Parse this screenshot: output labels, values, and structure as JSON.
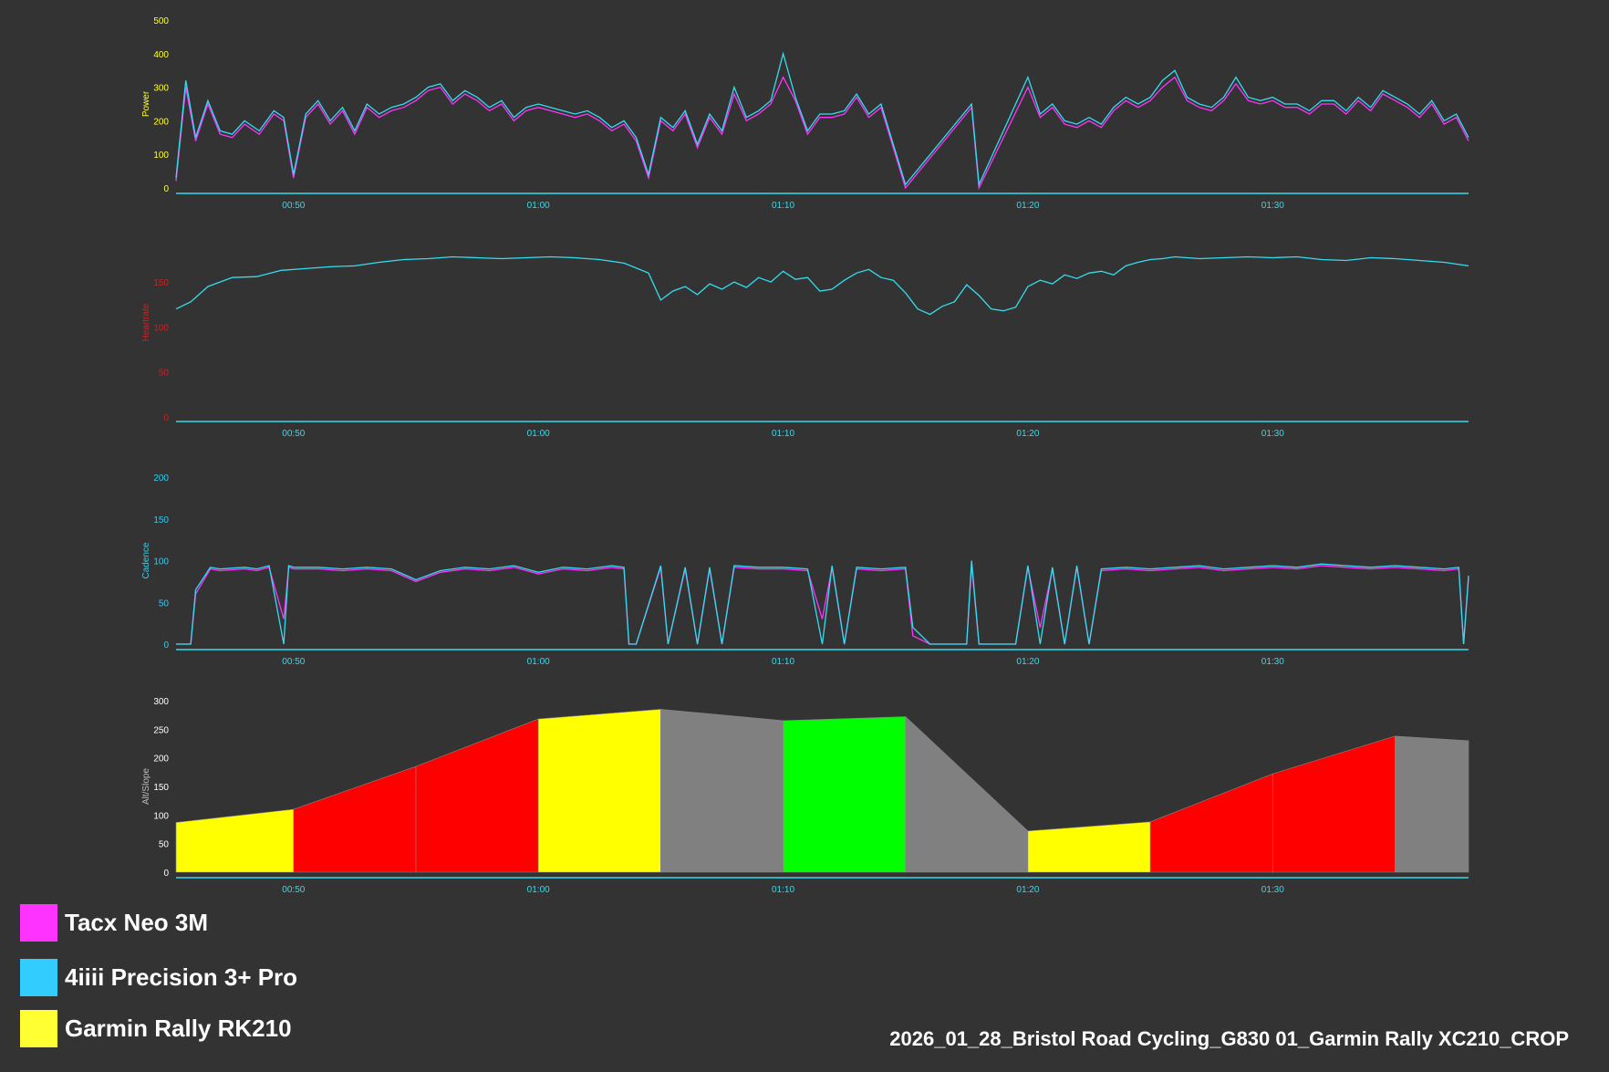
{
  "file_title": "2026_01_28_Bristol Road Cycling_G830 01_Garmin Rally XC210_CROP",
  "legend": [
    {
      "label": "Tacx Neo 3M",
      "color": "#ff33ff"
    },
    {
      "label": "4iiii Precision 3+ Pro",
      "color": "#33ccff"
    },
    {
      "label": "Garmin Rally RK210",
      "color": "#ffff33"
    }
  ],
  "colors": {
    "background": "#333333",
    "trace": "#33ddee",
    "trace_alt": "#ff33ff",
    "power_label": "#ffff33",
    "hr_label": "#cc2222",
    "cad_label": "#33ccee",
    "alt_label": "#bbbbbb",
    "axis": "#33ddee"
  },
  "chart_data": [
    {
      "type": "line",
      "ylabel": "Power",
      "yticks": [
        0,
        100,
        200,
        300,
        400,
        500
      ],
      "ylim": [
        0,
        500
      ],
      "x_ticks": [
        "00:50",
        "01:00",
        "01:10",
        "01:20",
        "01:30"
      ],
      "x_tick_minutes": [
        50,
        60,
        70,
        80,
        90
      ],
      "xlim_minutes": [
        45.2,
        98.0
      ],
      "series": [
        {
          "color": "#ff33ff",
          "x": [
            45.2,
            45.6,
            46.0,
            46.5,
            47.0,
            47.5,
            48.0,
            48.6,
            49.2,
            49.6,
            50.0,
            50.5,
            51.0,
            51.5,
            52.0,
            52.5,
            53.0,
            53.5,
            54.0,
            54.5,
            55.0,
            55.5,
            56.0,
            56.5,
            57.0,
            57.5,
            58.0,
            58.5,
            59.0,
            59.5,
            60.0,
            60.5,
            61.0,
            61.5,
            62.0,
            62.5,
            63.0,
            63.5,
            64.0,
            64.5,
            65.0,
            65.5,
            66.0,
            66.5,
            67.0,
            67.5,
            68.0,
            68.5,
            69.0,
            69.5,
            70.0,
            70.5,
            71.0,
            71.5,
            72.0,
            72.5,
            73.0,
            73.5,
            74.0,
            74.5,
            75.0,
            77.7,
            78.0,
            80.0,
            80.5,
            81.0,
            81.5,
            82.0,
            82.5,
            83.0,
            83.5,
            84.0,
            84.5,
            85.0,
            85.5,
            86.0,
            86.5,
            87.0,
            87.5,
            88.0,
            88.5,
            89.0,
            89.5,
            90.0,
            90.5,
            91.0,
            91.5,
            92.0,
            92.5,
            93.0,
            93.5,
            94.0,
            94.5,
            95.0,
            95.5,
            96.0,
            96.5,
            97.0,
            97.5,
            98.0
          ],
          "y": [
            20,
            300,
            140,
            250,
            160,
            150,
            190,
            160,
            220,
            200,
            30,
            210,
            250,
            190,
            230,
            160,
            240,
            210,
            230,
            240,
            260,
            290,
            300,
            250,
            280,
            260,
            230,
            250,
            200,
            230,
            240,
            230,
            220,
            210,
            220,
            200,
            170,
            190,
            140,
            30,
            200,
            170,
            220,
            120,
            210,
            160,
            280,
            200,
            220,
            250,
            330,
            260,
            160,
            210,
            210,
            220,
            270,
            210,
            240,
            120,
            0,
            240,
            0,
            300,
            210,
            240,
            190,
            180,
            200,
            180,
            230,
            260,
            240,
            260,
            300,
            330,
            260,
            240,
            230,
            260,
            310,
            260,
            250,
            260,
            240,
            240,
            220,
            250,
            250,
            220,
            260,
            230,
            280,
            260,
            240,
            210,
            250,
            190,
            210,
            140
          ]
        },
        {
          "color": "#33ddee",
          "x": [
            45.2,
            45.6,
            46.0,
            46.5,
            47.0,
            47.5,
            48.0,
            48.6,
            49.2,
            49.6,
            50.0,
            50.5,
            51.0,
            51.5,
            52.0,
            52.5,
            53.0,
            53.5,
            54.0,
            54.5,
            55.0,
            55.5,
            56.0,
            56.5,
            57.0,
            57.5,
            58.0,
            58.5,
            59.0,
            59.5,
            60.0,
            60.5,
            61.0,
            61.5,
            62.0,
            62.5,
            63.0,
            63.5,
            64.0,
            64.5,
            65.0,
            65.5,
            66.0,
            66.5,
            67.0,
            67.5,
            68.0,
            68.5,
            69.0,
            69.5,
            70.0,
            70.5,
            71.0,
            71.5,
            72.0,
            72.5,
            73.0,
            73.5,
            74.0,
            74.5,
            75.0,
            77.7,
            78.0,
            80.0,
            80.5,
            81.0,
            81.5,
            82.0,
            82.5,
            83.0,
            83.5,
            84.0,
            84.5,
            85.0,
            85.5,
            86.0,
            86.5,
            87.0,
            87.5,
            88.0,
            88.5,
            89.0,
            89.5,
            90.0,
            90.5,
            91.0,
            91.5,
            92.0,
            92.5,
            93.0,
            93.5,
            94.0,
            94.5,
            95.0,
            95.5,
            96.0,
            96.5,
            97.0,
            97.5,
            98.0
          ],
          "y": [
            30,
            320,
            150,
            260,
            170,
            160,
            200,
            170,
            230,
            210,
            40,
            220,
            260,
            200,
            240,
            170,
            250,
            220,
            240,
            250,
            270,
            300,
            310,
            260,
            290,
            270,
            240,
            260,
            210,
            240,
            250,
            240,
            230,
            220,
            230,
            210,
            180,
            200,
            150,
            40,
            210,
            180,
            230,
            130,
            220,
            170,
            300,
            210,
            230,
            260,
            400,
            270,
            170,
            220,
            220,
            230,
            280,
            220,
            250,
            130,
            10,
            250,
            10,
            330,
            220,
            250,
            200,
            190,
            210,
            190,
            240,
            270,
            250,
            270,
            320,
            350,
            270,
            250,
            240,
            270,
            330,
            270,
            260,
            270,
            250,
            250,
            230,
            260,
            260,
            230,
            270,
            240,
            290,
            270,
            250,
            220,
            260,
            200,
            220,
            150
          ]
        }
      ]
    },
    {
      "type": "line",
      "ylabel": "Heartrate",
      "yticks": [
        0,
        50,
        100,
        150
      ],
      "ylim": [
        0,
        210
      ],
      "x_ticks": [
        "00:50",
        "01:00",
        "01:10",
        "01:20",
        "01:30"
      ],
      "x_tick_minutes": [
        50,
        60,
        70,
        80,
        90
      ],
      "xlim_minutes": [
        45.2,
        98.0
      ],
      "series": [
        {
          "color": "#33ddee",
          "x": [
            45.2,
            45.8,
            46.5,
            47.5,
            48.5,
            49.5,
            50.5,
            51.5,
            52.5,
            53.5,
            54.5,
            55.5,
            56.5,
            57.5,
            58.5,
            59.5,
            60.5,
            61.5,
            62.5,
            63.5,
            64.5,
            65.0,
            65.5,
            66.0,
            66.5,
            67.0,
            67.5,
            68.0,
            68.5,
            69.0,
            69.5,
            70.0,
            70.5,
            71.0,
            71.5,
            72.0,
            72.5,
            73.0,
            73.5,
            74.0,
            74.5,
            75.0,
            75.5,
            76.0,
            76.5,
            77.0,
            77.5,
            78.0,
            78.5,
            79.0,
            79.5,
            80.0,
            80.5,
            81.0,
            81.5,
            82.0,
            82.5,
            83.0,
            83.5,
            84.0,
            84.5,
            85.0,
            85.5,
            86.0,
            87.0,
            88.0,
            89.0,
            90.0,
            91.0,
            92.0,
            93.0,
            94.0,
            95.0,
            96.0,
            97.0,
            98.0
          ],
          "y": [
            120,
            128,
            145,
            155,
            156,
            163,
            165,
            167,
            168,
            172,
            175,
            176,
            178,
            177,
            176,
            177,
            178,
            177,
            175,
            171,
            160,
            130,
            140,
            145,
            136,
            148,
            142,
            150,
            144,
            155,
            150,
            162,
            153,
            155,
            140,
            142,
            152,
            160,
            164,
            155,
            152,
            138,
            120,
            114,
            123,
            128,
            147,
            135,
            120,
            118,
            122,
            145,
            152,
            148,
            158,
            154,
            160,
            162,
            158,
            168,
            172,
            175,
            176,
            178,
            176,
            177,
            178,
            177,
            178,
            175,
            174,
            177,
            176,
            174,
            172,
            168
          ]
        }
      ]
    },
    {
      "type": "line",
      "ylabel": "Cadence",
      "yticks": [
        0,
        50,
        100,
        150,
        200
      ],
      "ylim": [
        0,
        200
      ],
      "x_ticks": [
        "00:50",
        "01:00",
        "01:10",
        "01:20",
        "01:30"
      ],
      "x_tick_minutes": [
        50,
        60,
        70,
        80,
        90
      ],
      "xlim_minutes": [
        45.2,
        98.0
      ],
      "series": [
        {
          "color": "#ff33ff",
          "x": [
            45.2,
            45.8,
            46.0,
            46.6,
            47.0,
            48.0,
            48.5,
            49.0,
            49.6,
            49.8,
            50.0,
            51.0,
            52.0,
            53.0,
            54.0,
            55.0,
            56.0,
            57.0,
            58.0,
            59.0,
            60.0,
            61.0,
            62.0,
            63.0,
            63.5,
            63.7,
            64.0,
            65.0,
            65.3,
            66.0,
            66.5,
            67.0,
            67.5,
            68.0,
            69.0,
            70.0,
            71.0,
            71.6,
            72.0,
            72.5,
            73.0,
            74.0,
            75.0,
            75.3,
            76.0,
            77.5,
            77.7,
            78.0,
            79.5,
            80.0,
            80.5,
            81.0,
            81.5,
            82.0,
            82.5,
            83.0,
            84.0,
            85.0,
            86.0,
            87.0,
            88.0,
            89.0,
            90.0,
            91.0,
            92.0,
            93.0,
            94.0,
            95.0,
            96.0,
            97.0,
            97.6,
            97.8,
            98.0
          ],
          "y": [
            0,
            0,
            60,
            90,
            88,
            90,
            88,
            92,
            30,
            92,
            90,
            90,
            88,
            90,
            88,
            75,
            86,
            90,
            88,
            92,
            84,
            90,
            88,
            92,
            90,
            0,
            0,
            92,
            0,
            90,
            0,
            90,
            0,
            92,
            90,
            90,
            88,
            30,
            92,
            0,
            90,
            88,
            90,
            10,
            0,
            0,
            95,
            0,
            0,
            92,
            20,
            90,
            0,
            92,
            0,
            88,
            90,
            88,
            90,
            92,
            88,
            90,
            92,
            90,
            94,
            92,
            90,
            92,
            90,
            88,
            90,
            0,
            80
          ]
        },
        {
          "color": "#33ddee",
          "x": [
            45.2,
            45.8,
            46.0,
            46.6,
            47.0,
            48.0,
            48.5,
            49.0,
            49.6,
            49.8,
            50.0,
            51.0,
            52.0,
            53.0,
            54.0,
            55.0,
            56.0,
            57.0,
            58.0,
            59.0,
            60.0,
            61.0,
            62.0,
            63.0,
            63.5,
            63.7,
            64.0,
            65.0,
            65.3,
            66.0,
            66.5,
            67.0,
            67.5,
            68.0,
            69.0,
            70.0,
            71.0,
            71.6,
            72.0,
            72.5,
            73.0,
            74.0,
            75.0,
            75.3,
            76.0,
            77.5,
            77.7,
            78.0,
            79.5,
            80.0,
            80.5,
            81.0,
            81.5,
            82.0,
            82.5,
            83.0,
            84.0,
            85.0,
            86.0,
            87.0,
            88.0,
            89.0,
            90.0,
            91.0,
            92.0,
            93.0,
            94.0,
            95.0,
            96.0,
            97.0,
            97.6,
            97.8,
            98.0
          ],
          "y": [
            0,
            0,
            65,
            92,
            90,
            92,
            90,
            94,
            0,
            94,
            92,
            92,
            90,
            92,
            90,
            77,
            88,
            92,
            90,
            94,
            86,
            92,
            90,
            94,
            92,
            0,
            0,
            94,
            0,
            92,
            0,
            92,
            0,
            94,
            92,
            92,
            90,
            0,
            94,
            0,
            92,
            90,
            92,
            20,
            0,
            0,
            100,
            0,
            0,
            94,
            0,
            92,
            0,
            94,
            0,
            90,
            92,
            90,
            92,
            94,
            90,
            92,
            94,
            92,
            96,
            94,
            92,
            94,
            92,
            90,
            92,
            0,
            82
          ]
        }
      ]
    },
    {
      "type": "area",
      "ylabel": "Alt/Slope",
      "yticks": [
        0,
        50,
        100,
        150,
        200,
        250,
        300
      ],
      "ylim": [
        0,
        300
      ],
      "x_ticks": [
        "00:50",
        "01:00",
        "01:10",
        "01:20",
        "01:30"
      ],
      "x_tick_minutes": [
        50,
        60,
        70,
        80,
        90
      ],
      "xlim_minutes": [
        45.2,
        98.0
      ],
      "segments": [
        {
          "x0": 45.2,
          "x1": 50.0,
          "y0": 87,
          "y1": 110,
          "color": "#ffff00"
        },
        {
          "x0": 50.0,
          "x1": 55.0,
          "y0": 110,
          "y1": 185,
          "color": "#ff0000"
        },
        {
          "x0": 55.0,
          "x1": 60.0,
          "y0": 185,
          "y1": 268,
          "color": "#ff0000"
        },
        {
          "x0": 60.0,
          "x1": 65.0,
          "y0": 268,
          "y1": 285,
          "color": "#ffff00"
        },
        {
          "x0": 65.0,
          "x1": 70.0,
          "y0": 285,
          "y1": 265,
          "color": "#808080"
        },
        {
          "x0": 70.0,
          "x1": 75.0,
          "y0": 265,
          "y1": 272,
          "color": "#00ff00"
        },
        {
          "x0": 75.0,
          "x1": 80.0,
          "y0": 272,
          "y1": 72,
          "color": "#808080"
        },
        {
          "x0": 80.0,
          "x1": 85.0,
          "y0": 72,
          "y1": 88,
          "color": "#ffff00"
        },
        {
          "x0": 85.0,
          "x1": 90.0,
          "y0": 88,
          "y1": 172,
          "color": "#ff0000"
        },
        {
          "x0": 90.0,
          "x1": 95.0,
          "y0": 172,
          "y1": 238,
          "color": "#ff0000"
        },
        {
          "x0": 95.0,
          "x1": 98.0,
          "y0": 238,
          "y1": 230,
          "color": "#808080"
        }
      ]
    }
  ]
}
